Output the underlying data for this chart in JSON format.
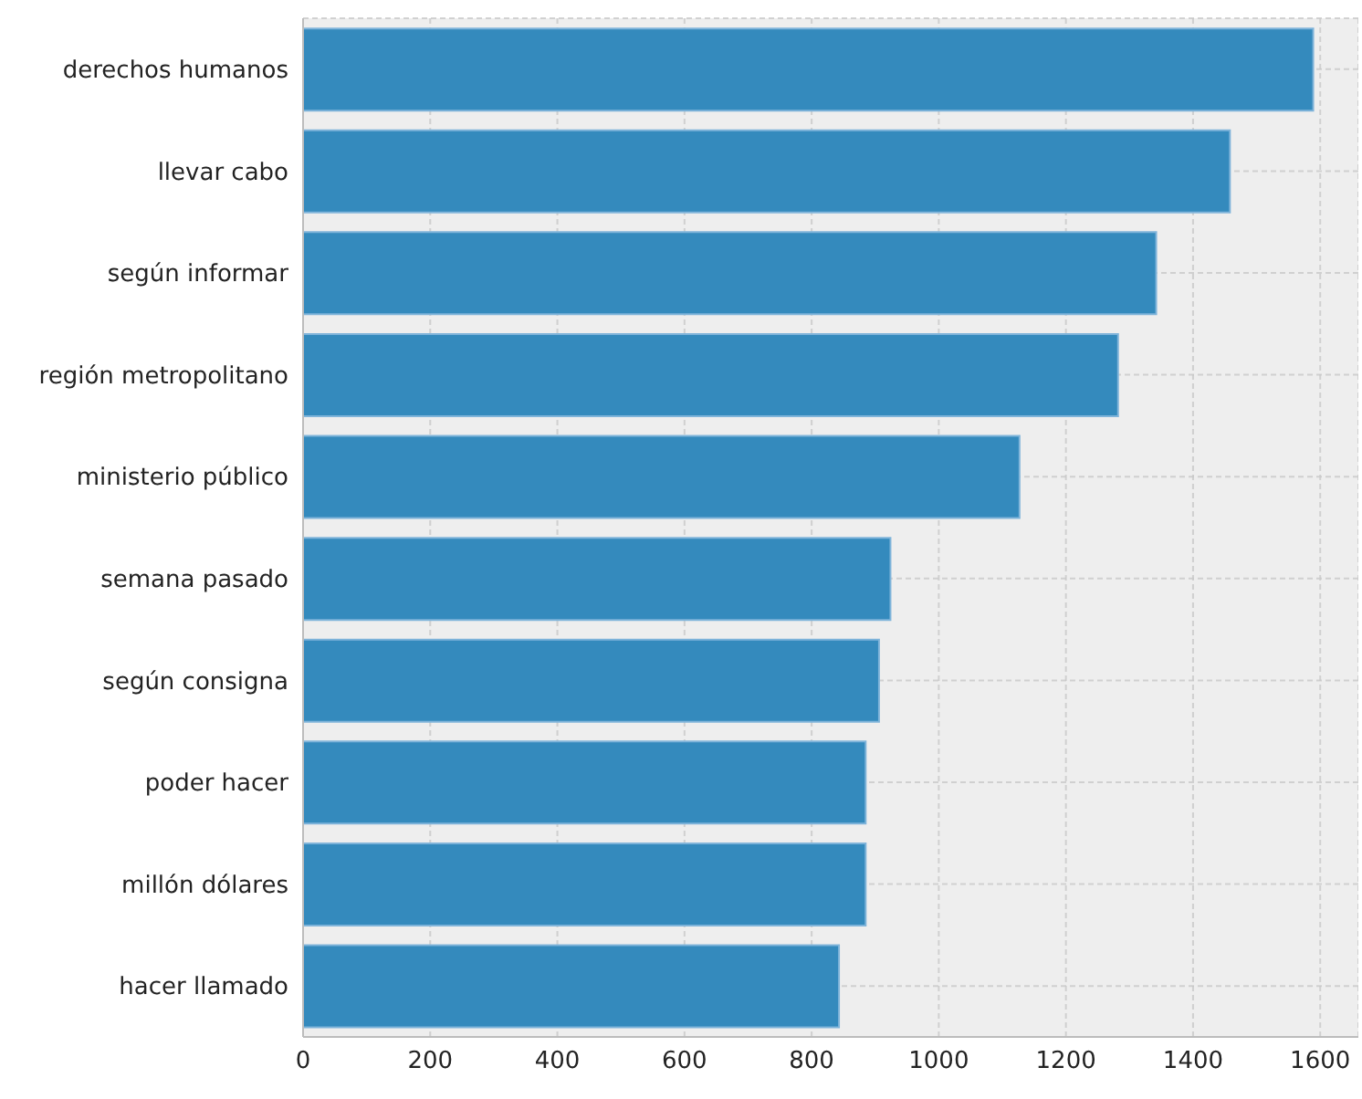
{
  "chart_data": {
    "type": "bar",
    "orientation": "horizontal",
    "categories": [
      "derechos humanos",
      "llevar cabo",
      "según informar",
      "región metropolitano",
      "ministerio público",
      "semana pasado",
      "según consigna",
      "poder hacer",
      "millón dólares",
      "hacer llamado"
    ],
    "values": [
      1589,
      1458,
      1342,
      1282,
      1127,
      924,
      906,
      885,
      885,
      843
    ],
    "color": "#348abd",
    "xlim": [
      0,
      1660
    ],
    "xticks": [
      0,
      200,
      400,
      600,
      800,
      1000,
      1200,
      1400,
      1600
    ],
    "grid": true
  }
}
